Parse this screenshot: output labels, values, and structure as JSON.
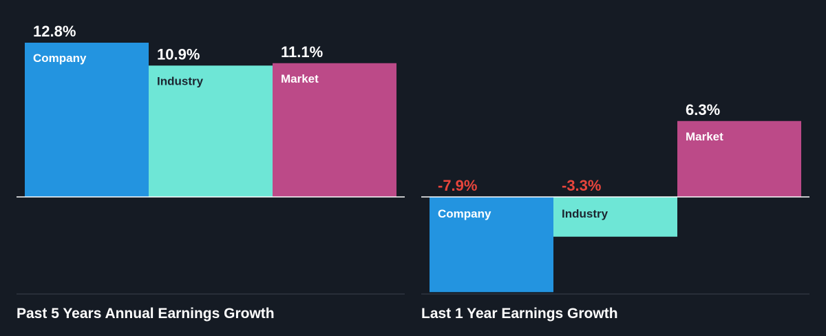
{
  "colors": {
    "background": "#151b24",
    "company": "#2394e0",
    "industry": "#6ee6d6",
    "market": "#bc4a88",
    "positive_value": "#ffffff",
    "negative_value": "#e8453c",
    "company_label": "#ffffff",
    "industry_label": "#1c2530",
    "market_label": "#ffffff",
    "baseline": "#ffffff",
    "footer_rule": "#3a414b"
  },
  "chart_data": [
    {
      "type": "bar",
      "title": "Past 5 Years Annual Earnings Growth",
      "categories": [
        "Company",
        "Industry",
        "Market"
      ],
      "values": [
        12.8,
        10.9,
        11.1
      ],
      "value_labels": [
        "12.8%",
        "10.9%",
        "11.1%"
      ],
      "ylim": [
        -8.0,
        12.8
      ],
      "grid": false
    },
    {
      "type": "bar",
      "title": "Last 1 Year Earnings Growth",
      "categories": [
        "Company",
        "Industry",
        "Market"
      ],
      "values": [
        -7.9,
        -3.3,
        6.3
      ],
      "value_labels": [
        "-7.9%",
        "-3.3%",
        "6.3%"
      ],
      "ylim": [
        -8.0,
        12.8
      ],
      "grid": false
    }
  ]
}
